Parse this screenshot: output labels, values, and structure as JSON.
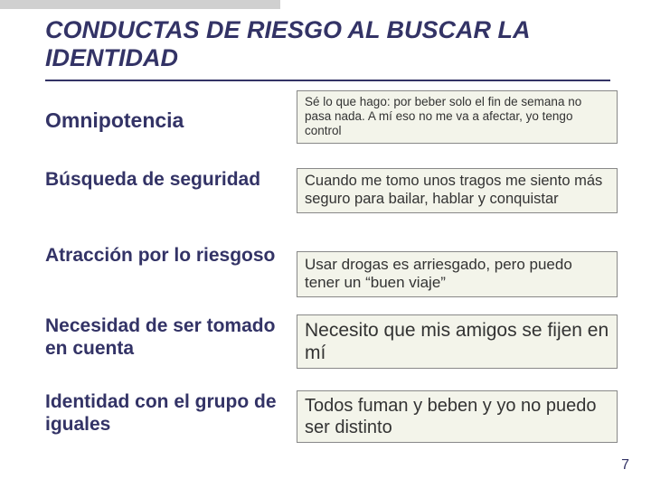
{
  "title": "CONDUCTAS DE RIESGO AL BUSCAR LA IDENTIDAD",
  "rows": [
    {
      "label": "Omnipotencia",
      "box": "Sé lo que hago: por beber solo el fin de semana no pasa nada. A mí eso no me va a afectar, yo tengo control"
    },
    {
      "label": "Búsqueda de seguridad",
      "box": "Cuando me tomo unos tragos me siento más seguro para bailar, hablar y conquistar"
    },
    {
      "label": "Atracción por lo riesgoso",
      "box": "Usar drogas es arriesgado, pero puedo tener un “buen viaje”"
    },
    {
      "label": "Necesidad de ser tomado en cuenta",
      "box": "Necesito que mis amigos se fijen en mí"
    },
    {
      "label": "Identidad con el grupo de iguales",
      "box": "Todos fuman  y beben  y yo no puedo ser distinto"
    }
  ],
  "page_number": "7",
  "colors": {
    "title_color": "#333366",
    "label_color": "#333366",
    "box_bg": "#f3f4ea",
    "box_border": "#888888",
    "box_text": "#333333",
    "topbar": "#d0d0d0",
    "underline": "#333366"
  }
}
